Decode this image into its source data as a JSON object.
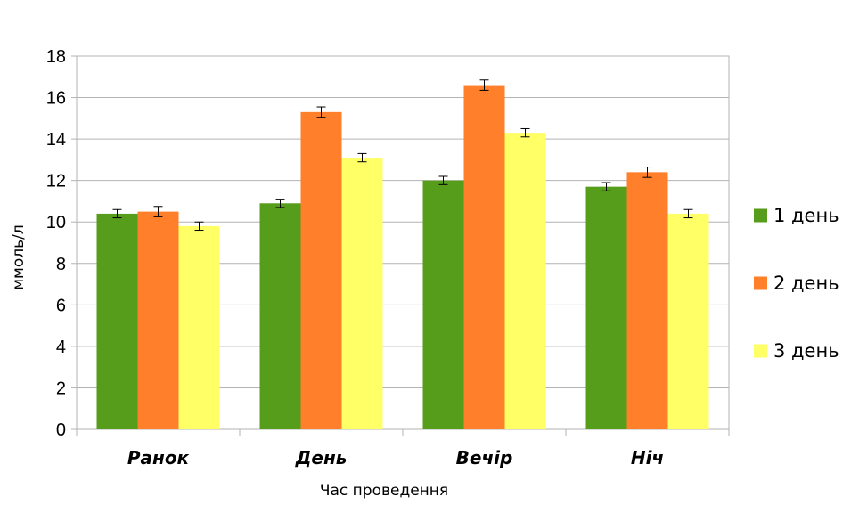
{
  "chart_data": {
    "type": "bar",
    "categories": [
      "Ранок",
      "День",
      "Вечір",
      "Ніч"
    ],
    "series": [
      {
        "name": "1 день",
        "color": "#579d1c",
        "values": [
          10.4,
          10.9,
          12.0,
          11.7
        ],
        "errors": [
          0.2,
          0.2,
          0.2,
          0.2
        ]
      },
      {
        "name": "2 день",
        "color": "#ff7f2a",
        "values": [
          10.5,
          15.3,
          16.6,
          12.4
        ],
        "errors": [
          0.25,
          0.25,
          0.25,
          0.25
        ]
      },
      {
        "name": "3 день",
        "color": "#ffff66",
        "values": [
          9.8,
          13.1,
          14.3,
          10.4
        ],
        "errors": [
          0.2,
          0.2,
          0.2,
          0.2
        ]
      }
    ],
    "xlabel": "Час проведення",
    "ylabel": "ммоль/л",
    "ylim": [
      0,
      18
    ],
    "yticks": [
      0,
      2,
      4,
      6,
      8,
      10,
      12,
      14,
      16,
      18
    ],
    "grid": true,
    "legend_position": "right",
    "colors": {
      "grid": "#b3b3b3",
      "error_bar": "#000000"
    }
  }
}
